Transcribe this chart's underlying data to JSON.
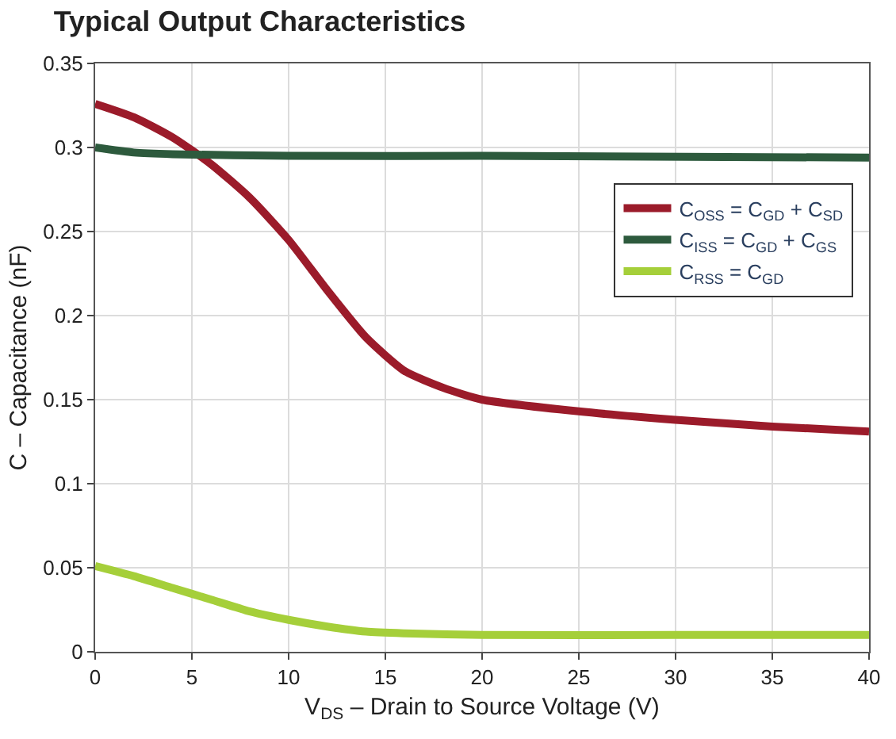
{
  "chart_data": {
    "type": "line",
    "title": "Typical Output Characteristics",
    "xlabel": "V$_{DS}$ – Drain to Source Voltage (V)",
    "ylabel": "C – Capacitance (nF)",
    "xlim": [
      0,
      40
    ],
    "xticks": [
      0,
      5,
      10,
      15,
      20,
      25,
      30,
      35,
      40
    ],
    "ylim": [
      0,
      0.35
    ],
    "yticks": [
      0,
      0.05,
      0.1,
      0.15,
      0.2,
      0.25,
      0.3,
      0.35
    ],
    "grid": true,
    "legend": "right",
    "marker": "none",
    "line_style": "solid",
    "series": [
      {
        "name": "C$_{OSS}$ = C$_{GD}$ + C$_{SD}$",
        "color": "#9b1b2a",
        "x": [
          0,
          2,
          4,
          6,
          8,
          10,
          12,
          14,
          16,
          18,
          20,
          25,
          30,
          35,
          40
        ],
        "values": [
          0.326,
          0.318,
          0.306,
          0.29,
          0.27,
          0.245,
          0.215,
          0.187,
          0.167,
          0.157,
          0.15,
          0.143,
          0.138,
          0.134,
          0.131
        ]
      },
      {
        "name": "C$_{ISS}$ = C$_{GD}$ + C$_{GS}$",
        "color": "#2d5a3d",
        "x": [
          0,
          2,
          4,
          10,
          20,
          40
        ],
        "values": [
          0.3,
          0.297,
          0.296,
          0.295,
          0.295,
          0.294
        ]
      },
      {
        "name": "C$_{RSS}$ = C$_{GD}$",
        "color": "#a5cf3a",
        "x": [
          0,
          2,
          4,
          6,
          8,
          10,
          12,
          14,
          16,
          20,
          30,
          40
        ],
        "values": [
          0.051,
          0.045,
          0.038,
          0.031,
          0.024,
          0.019,
          0.015,
          0.012,
          0.011,
          0.01,
          0.01,
          0.01
        ]
      }
    ]
  }
}
